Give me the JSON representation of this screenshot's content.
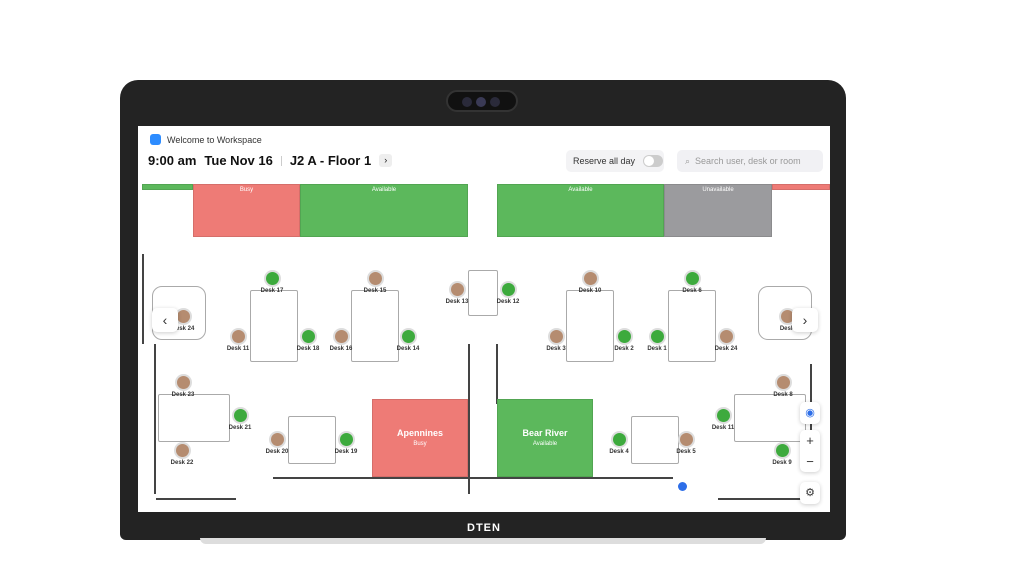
{
  "device": {
    "brand": "DTEN"
  },
  "app": {
    "title": "Welcome to Workspace"
  },
  "header": {
    "time": "9:00 am",
    "date": "Tue Nov 16",
    "location": "J2 A - Floor 1",
    "reserve_label": "Reserve all day",
    "reserve_on": false,
    "search_placeholder": "Search user, desk or room"
  },
  "colors": {
    "busy": "#ee7b76",
    "available": "#5cb85c",
    "unavailable": "#9b9b9e",
    "accent": "#2d6ee8"
  },
  "top_rooms": [
    {
      "status": "Busy"
    },
    {
      "status": "Available"
    },
    {
      "status": "Available"
    },
    {
      "status": "Unavailable"
    }
  ],
  "rooms": [
    {
      "name": "Apennines",
      "status": "Busy"
    },
    {
      "name": "Bear River",
      "status": "Available"
    }
  ],
  "desks": [
    {
      "label": "Desk 17",
      "state": "available"
    },
    {
      "label": "Desk 15",
      "state": "occupied"
    },
    {
      "label": "Desk 13",
      "state": "occupied"
    },
    {
      "label": "Desk 12",
      "state": "available"
    },
    {
      "label": "Desk 10",
      "state": "occupied"
    },
    {
      "label": "Desk 6",
      "state": "available"
    },
    {
      "label": "Desk 11",
      "state": "occupied"
    },
    {
      "label": "Desk 18",
      "state": "available"
    },
    {
      "label": "Desk 16",
      "state": "occupied"
    },
    {
      "label": "Desk 14",
      "state": "available"
    },
    {
      "label": "Desk 3",
      "state": "occupied"
    },
    {
      "label": "Desk 2",
      "state": "available"
    },
    {
      "label": "Desk 1",
      "state": "available"
    },
    {
      "label": "Desk 24",
      "state": "occupied"
    },
    {
      "label": "Desk 24",
      "state": "occupied"
    },
    {
      "label": "Desk",
      "state": "occupied"
    },
    {
      "label": "Desk 23",
      "state": "occupied"
    },
    {
      "label": "Desk 21",
      "state": "available"
    },
    {
      "label": "Desk 22",
      "state": "occupied"
    },
    {
      "label": "Desk 20",
      "state": "occupied"
    },
    {
      "label": "Desk 19",
      "state": "available"
    },
    {
      "label": "Desk 4",
      "state": "available"
    },
    {
      "label": "Desk 5",
      "state": "occupied"
    },
    {
      "label": "Desk 8",
      "state": "occupied"
    },
    {
      "label": "Desk 11",
      "state": "available"
    },
    {
      "label": "Desk 9",
      "state": "available"
    }
  ],
  "controls": {
    "prev": "‹",
    "next": "›",
    "zoom_in": "+",
    "zoom_out": "−",
    "locate": "◉",
    "settings": "⚙"
  }
}
